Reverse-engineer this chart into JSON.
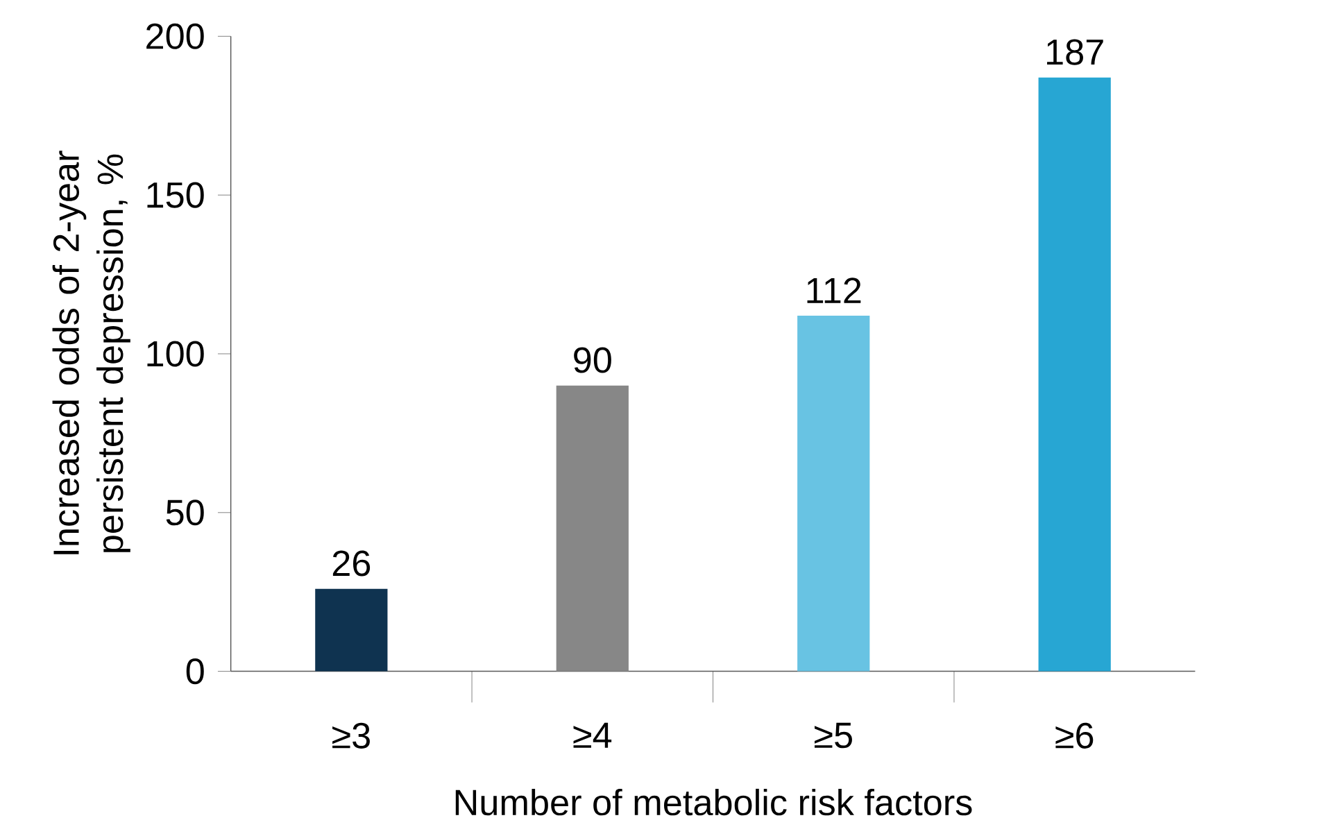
{
  "chart_data": {
    "type": "bar",
    "xlabel": "Number of metabolic risk factors",
    "ylabel": "Increased odds of 2-year persistent depression, %",
    "categories": [
      "≥3",
      "≥4",
      "≥5",
      "≥6"
    ],
    "values": [
      26,
      90,
      112,
      187
    ],
    "colors": [
      "#0f3350",
      "#878787",
      "#68c3e3",
      "#27a6d3"
    ],
    "ylim": [
      0,
      200
    ],
    "yticks": [
      0,
      50,
      100,
      150,
      200
    ],
    "data_labels": true
  }
}
